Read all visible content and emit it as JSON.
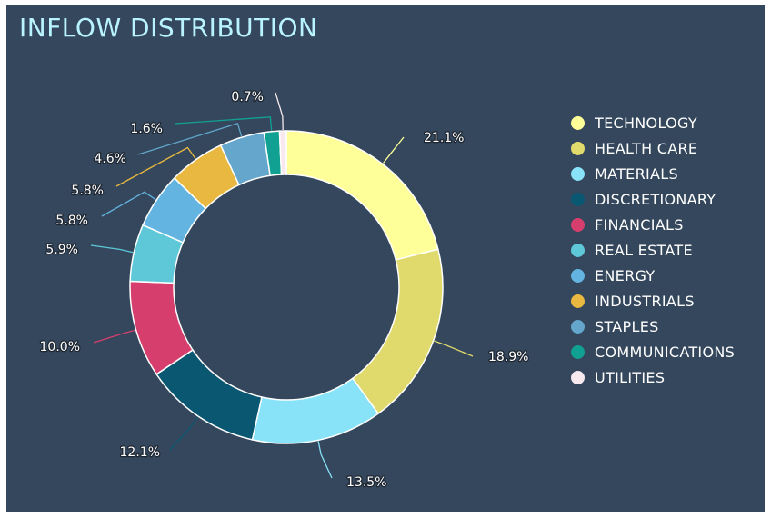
{
  "chart_data": {
    "type": "pie",
    "variant": "donut",
    "title": "INFLOW DISTRIBUTION",
    "legend_position": "right",
    "slices": [
      {
        "name": "TECHNOLOGY",
        "value": 21.1,
        "label": "21.1%",
        "color": "#ffff99"
      },
      {
        "name": "HEALTH CARE",
        "value": 18.9,
        "label": "18.9%",
        "color": "#e0d96c"
      },
      {
        "name": "MATERIALS",
        "value": 13.5,
        "label": "13.5%",
        "color": "#88e3f8"
      },
      {
        "name": "DISCRETIONARY",
        "value": 12.1,
        "label": "12.1%",
        "color": "#0a5772"
      },
      {
        "name": "FINANCIALS",
        "value": 10.0,
        "label": "10.0%",
        "color": "#d63f6d"
      },
      {
        "name": "REAL ESTATE",
        "value": 5.9,
        "label": "5.9%",
        "color": "#5ec8d9"
      },
      {
        "name": "ENERGY",
        "value": 5.8,
        "label": "5.8%",
        "color": "#63b4e0"
      },
      {
        "name": "INDUSTRIALS",
        "value": 5.8,
        "label": "5.8%",
        "color": "#e8b840"
      },
      {
        "name": "STAPLES",
        "value": 4.6,
        "label": "4.6%",
        "color": "#64a6cc"
      },
      {
        "name": "COMMUNICATIONS",
        "value": 1.6,
        "label": "1.6%",
        "color": "#11a192"
      },
      {
        "name": "UTILITIES",
        "value": 0.7,
        "label": "0.7%",
        "color": "#f7e9ee"
      }
    ]
  }
}
